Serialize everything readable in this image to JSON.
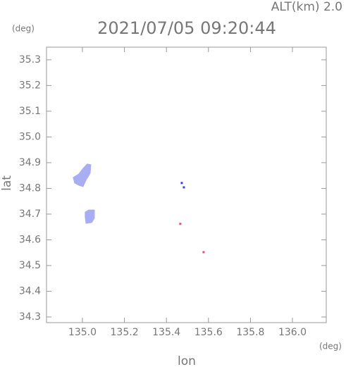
{
  "chart_data": {
    "type": "scatter",
    "title": "2021/07/05 09:20:44",
    "annotation": "ALT(km) 2.0",
    "y_unit": "(deg)",
    "x_unit": "(deg)",
    "xlabel": "lon",
    "ylabel": "lat",
    "xlim": [
      134.829,
      136.161
    ],
    "ylim": [
      34.278,
      35.349
    ],
    "xticks": [
      {
        "value": 135.0,
        "label": "135.0"
      },
      135.2,
      135.4,
      135.6,
      135.8,
      {
        "value": 136.0,
        "label": "136.0"
      }
    ],
    "yticks": [
      34.3,
      34.4,
      34.5,
      34.6,
      34.7,
      34.8,
      34.9,
      {
        "value": 35.0,
        "label": "35.0"
      },
      35.1,
      35.2,
      35.3
    ],
    "areas": [
      {
        "color": "#a9aef2",
        "x": [
          134.956,
          134.983,
          135.0,
          135.023,
          135.04,
          135.037,
          135.017,
          135.003,
          134.983,
          134.963
        ],
        "y": [
          34.842,
          34.856,
          34.875,
          34.895,
          34.892,
          34.859,
          34.832,
          34.807,
          34.812,
          34.821
        ]
      },
      {
        "color": "#a9aef2",
        "x": [
          135.013,
          135.03,
          135.057,
          135.057,
          135.044,
          135.017,
          135.013
        ],
        "y": [
          34.708,
          34.716,
          34.716,
          34.684,
          34.667,
          34.664,
          34.689
        ]
      }
    ],
    "points": [
      {
        "color": "#3a44d8",
        "x": [
          135.473,
          135.483
        ],
        "y": [
          34.821,
          34.804
        ]
      },
      {
        "color": "#e0507a",
        "x": [
          135.466,
          135.577
        ],
        "y": [
          34.662,
          34.552
        ]
      }
    ]
  }
}
